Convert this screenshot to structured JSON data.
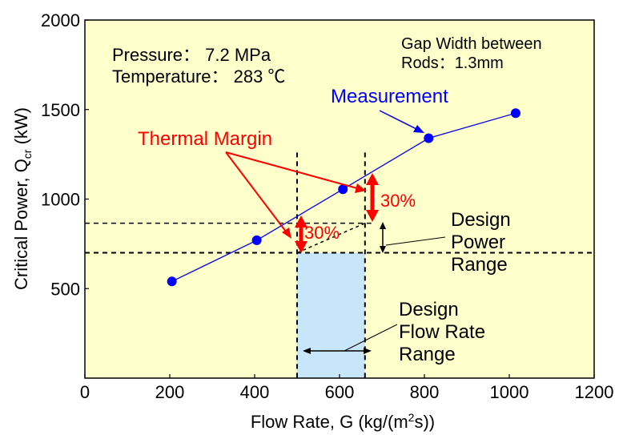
{
  "chart_data": {
    "type": "scatter",
    "xlabel": "Flow Rate, G (kg/(m",
    "xlabel_sup": "2",
    "xlabel_end": "s))",
    "ylabel": "Critical Power, Q",
    "ylabel_sub": "cr",
    "ylabel_end": " (kW)",
    "xlim": [
      0,
      1200
    ],
    "ylim": [
      0,
      2000
    ],
    "xticks": [
      0,
      200,
      400,
      600,
      800,
      1000,
      1200
    ],
    "yticks": [
      500,
      1000,
      1500,
      2000
    ],
    "xtick_labels": [
      "0",
      "200",
      "400",
      "600",
      "800",
      "1000",
      "1200"
    ],
    "ytick_labels": [
      "500",
      "1000",
      "1500",
      "2000"
    ],
    "grid": false,
    "series": [
      {
        "name": "Measurement",
        "color": "#0000ff",
        "x": [
          205,
          405,
          608,
          810,
          1015
        ],
        "y": [
          540,
          770,
          1055,
          1340,
          1480
        ]
      }
    ],
    "design_flow_range": [
      500,
      660
    ],
    "design_power_range": [
      700,
      865
    ],
    "design_flow_box_color": "#c8e6fa",
    "plot_background": "#ffffcc",
    "annotation_color": "#ff0000"
  },
  "annotations": {
    "pressure": "Pressure： 7.2 MPa",
    "temperature": "Temperature： 283 ℃",
    "gap_line1": "Gap Width between",
    "gap_line2": "Rods：1.3mm",
    "measurement": "Measurement",
    "thermal_margin": "Thermal Margin",
    "margin1": "30%",
    "margin2": "30%",
    "design_power_1": "Design",
    "design_power_2": "Power",
    "design_power_3": "Range",
    "design_flow_1": "Design",
    "design_flow_2": "Flow Rate",
    "design_flow_3": "Range"
  }
}
